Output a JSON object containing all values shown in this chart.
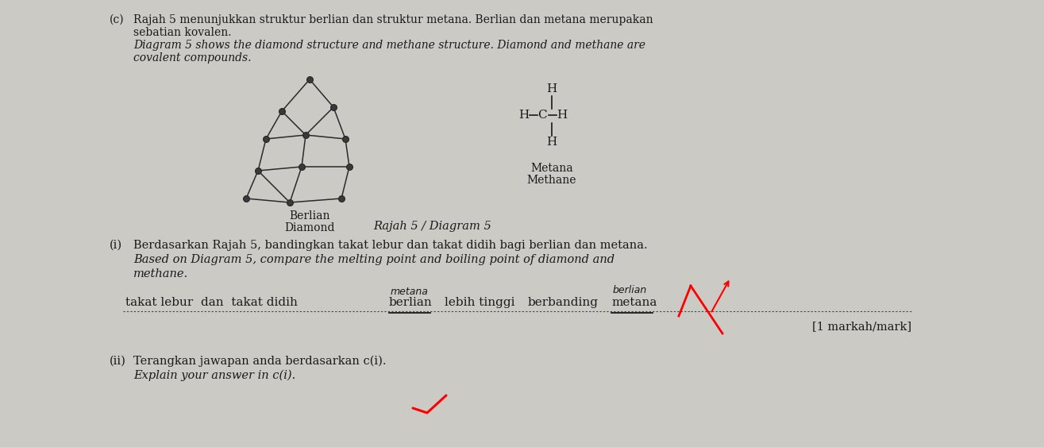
{
  "bg_color": "#cccac4",
  "paper_color": "#dddbd5",
  "text_color": "#1a1a1a",
  "title_c": "(c)",
  "line1_malay": "Rajah 5 menunjukkan struktur berlian dan struktur metana. Berlian dan metana merupakan",
  "line2_malay": "sebatian kovalen.",
  "line3_english": "Diagram 5 shows the diamond structure and methane structure. Diamond and methane are",
  "line4_english": "covalent compounds.",
  "berlian_label_1": "Berlian",
  "berlian_label_2": "Diamond",
  "metana_label_1": "Metana",
  "metana_label_2": "Methane",
  "diagram_caption": "Rajah 5 / Diagram 5",
  "qi_label": "(i)",
  "qi_malay": "Berdasarkan Rajah 5, bandingkan takat lebur dan takat didih bagi berlian dan metana.",
  "qi_english": "Based on Diagram 5, compare the melting point and boiling point of diamond and",
  "qi_english2": "methane.",
  "mark_text": "[1 markah/mark]",
  "qii_label": "(ii)",
  "qii_malay": "Terangkan jawapan anda berdasarkan c(i).",
  "qii_english": "Explain your answer in c(i)."
}
